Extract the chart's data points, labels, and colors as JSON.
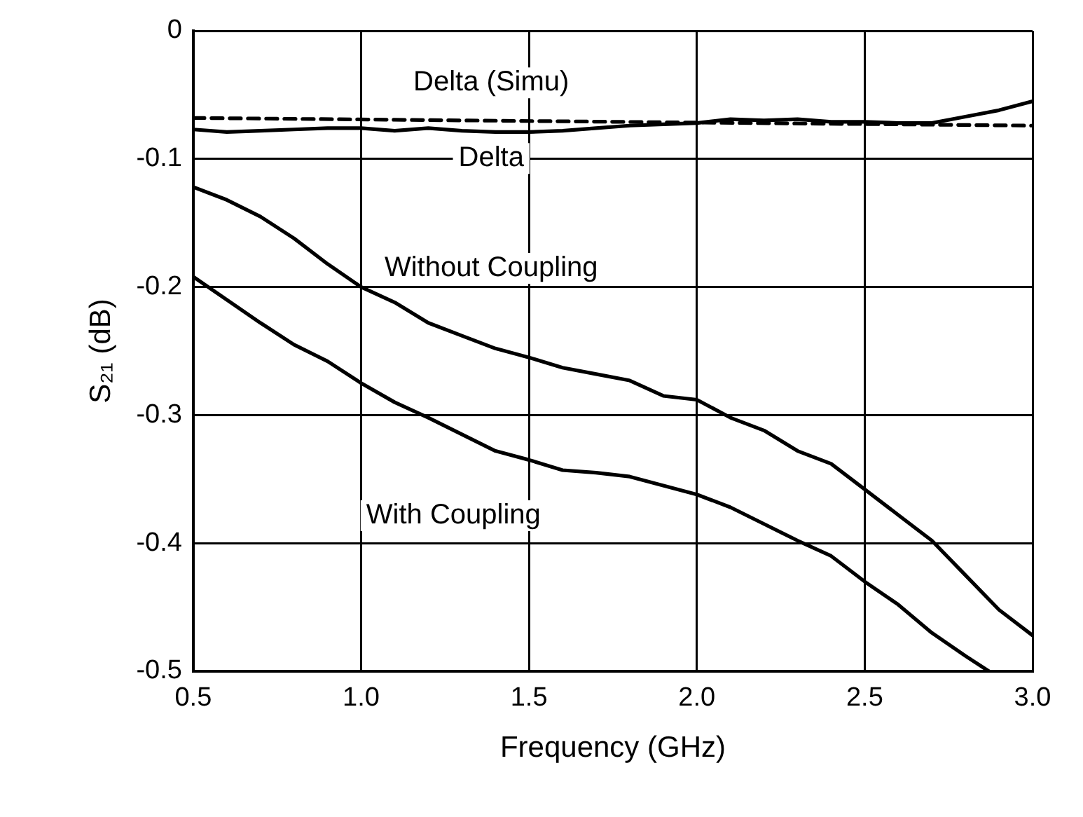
{
  "chart_data": {
    "type": "line",
    "xlabel": "Frequency (GHz)",
    "ylabel": "S₂₁ (dB)",
    "xlim": [
      0.5,
      3.0
    ],
    "xticks": [
      0.5,
      {
        "value": 1,
        "label": "1.0"
      },
      1.5,
      {
        "value": 2,
        "label": "2.0"
      },
      2.5,
      {
        "value": 3,
        "label": "3.0"
      }
    ],
    "ylim": [
      -0.5,
      0
    ],
    "yticks": [
      -0.5,
      -0.4,
      -0.3,
      -0.2,
      -0.1,
      0
    ],
    "grid": true,
    "legend": false,
    "marker": "none",
    "series": [
      {
        "name": "Delta (Simu)",
        "color": "#000000",
        "line_style": "dashed",
        "x": [
          0.5,
          3.0
        ],
        "values": [
          -0.068,
          -0.074
        ]
      },
      {
        "name": "Delta",
        "color": "#000000",
        "line_style": "solid",
        "x": [
          0.5,
          0.6,
          0.7,
          0.8,
          0.9,
          1.0,
          1.1,
          1.2,
          1.3,
          1.4,
          1.5,
          1.6,
          1.7,
          1.8,
          1.9,
          2.0,
          2.1,
          2.2,
          2.3,
          2.4,
          2.5,
          2.6,
          2.7,
          2.8,
          2.9,
          3.0
        ],
        "values": [
          -0.077,
          -0.079,
          -0.078,
          -0.077,
          -0.076,
          -0.076,
          -0.078,
          -0.076,
          -0.078,
          -0.079,
          -0.079,
          -0.078,
          -0.076,
          -0.074,
          -0.073,
          -0.072,
          -0.069,
          -0.07,
          -0.069,
          -0.071,
          -0.071,
          -0.072,
          -0.072,
          -0.067,
          -0.062,
          -0.055
        ]
      },
      {
        "name": "Without Coupling",
        "color": "#000000",
        "line_style": "solid",
        "x": [
          0.5,
          0.6,
          0.7,
          0.8,
          0.9,
          1.0,
          1.1,
          1.2,
          1.3,
          1.4,
          1.5,
          1.6,
          1.7,
          1.8,
          1.9,
          2.0,
          2.1,
          2.2,
          2.3,
          2.4,
          2.5,
          2.6,
          2.7,
          2.8,
          2.9,
          3.0
        ],
        "values": [
          -0.122,
          -0.132,
          -0.145,
          -0.162,
          -0.182,
          -0.2,
          -0.212,
          -0.228,
          -0.238,
          -0.248,
          -0.255,
          -0.263,
          -0.268,
          -0.273,
          -0.285,
          -0.288,
          -0.302,
          -0.312,
          -0.328,
          -0.338,
          -0.358,
          -0.378,
          -0.398,
          -0.425,
          -0.452,
          -0.472
        ]
      },
      {
        "name": "With Coupling",
        "color": "#000000",
        "line_style": "solid",
        "x": [
          0.5,
          0.6,
          0.7,
          0.8,
          0.9,
          1.0,
          1.1,
          1.2,
          1.3,
          1.4,
          1.5,
          1.6,
          1.7,
          1.8,
          1.9,
          2.0,
          2.1,
          2.2,
          2.3,
          2.4,
          2.5,
          2.6,
          2.7,
          2.8,
          2.87
        ],
        "values": [
          -0.192,
          -0.21,
          -0.228,
          -0.245,
          -0.258,
          -0.275,
          -0.29,
          -0.302,
          -0.315,
          -0.328,
          -0.335,
          -0.343,
          -0.345,
          -0.348,
          -0.355,
          -0.362,
          -0.372,
          -0.385,
          -0.398,
          -0.41,
          -0.43,
          -0.448,
          -0.47,
          -0.488,
          -0.5
        ]
      }
    ]
  }
}
